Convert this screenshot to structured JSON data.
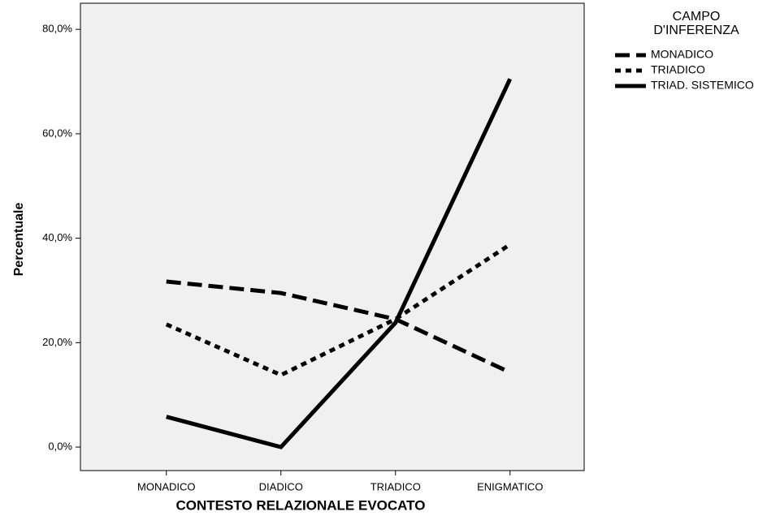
{
  "chart_data": {
    "type": "line",
    "x_label": "CONTESTO RELAZIONALE EVOCATO",
    "y_label": "Percentuale",
    "legend_title": "CAMPO\nD'INFERENZA",
    "categories": [
      "MONADICO",
      "DIADICO",
      "TRIADICO",
      "ENIGMATICO"
    ],
    "series": [
      {
        "name": "MONADICO",
        "color": "#000000",
        "dash": "dashed",
        "values": [
          31.7,
          29.5,
          24.5,
          14.3
        ]
      },
      {
        "name": "TRIADICO",
        "color": "#000000",
        "dash": "dotted",
        "values": [
          23.5,
          13.8,
          24.5,
          38.8
        ]
      },
      {
        "name": "TRIAD. SISTEMICO",
        "color": "#000000",
        "dash": "solid",
        "values": [
          5.8,
          0,
          23.8,
          70.5
        ]
      }
    ],
    "ylim": [
      -4.5,
      85
    ],
    "yticks": [
      {
        "value": 0,
        "label": "0,0%"
      },
      {
        "value": 20,
        "label": "20,0%"
      },
      {
        "value": 40,
        "label": "40,0%"
      },
      {
        "value": 60,
        "label": "60,0%"
      },
      {
        "value": 80,
        "label": "80,0%"
      }
    ],
    "legend": "right"
  }
}
